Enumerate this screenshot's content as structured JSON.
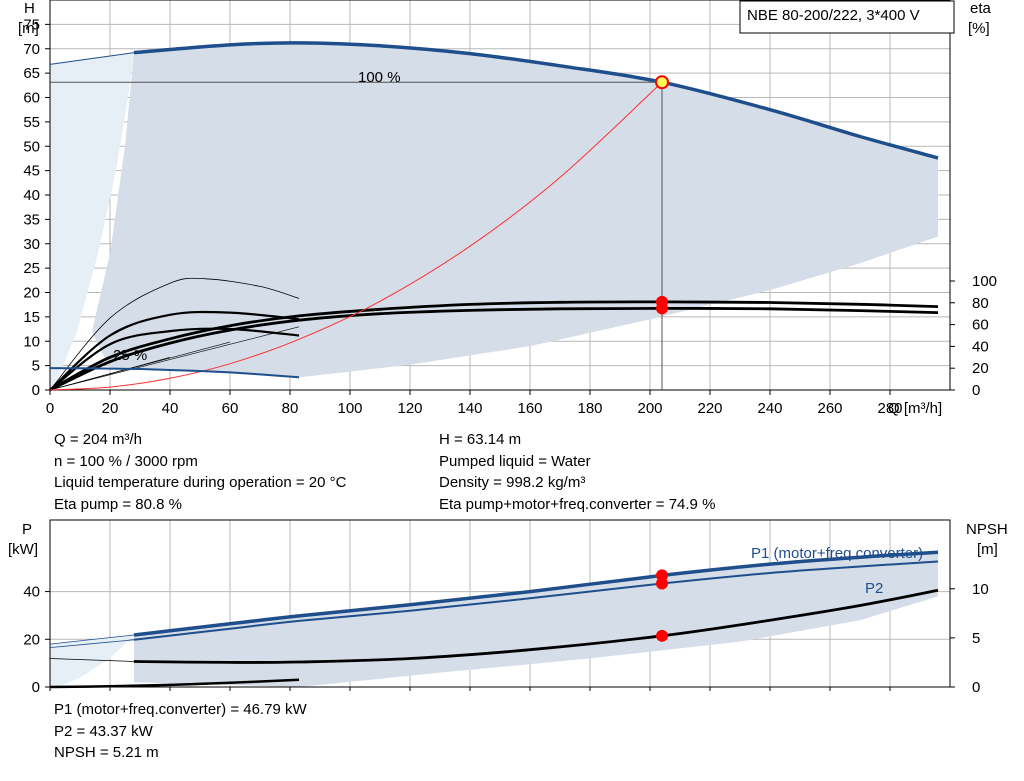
{
  "product_box": "NBE 80-200/222, 3*400 V",
  "top_panel": {
    "y_label_line1": "H",
    "y_label_line2": "[m]",
    "y2_label_line1": "eta",
    "y2_label_line2": "[%]",
    "x_label": "Q [m³/h]",
    "curve_label_100": "100 %",
    "curve_label_25": "25 %"
  },
  "bottom_panel": {
    "y_label_line1": "P",
    "y_label_line2": "[kW]",
    "y2_label_line1": "NPSH",
    "y2_label_line2": "[m]",
    "p1_label": "P1 (motor+freq.converter)",
    "p2_label": "P2"
  },
  "info_top": {
    "q": "Q = 204 m³/h",
    "n": "n = 100 % / 3000 rpm",
    "temp": "Liquid temperature during operation = 20 °C",
    "eta_pump": "Eta pump = 80.8 %",
    "h": "H = 63.14 m",
    "liquid": "Pumped liquid = Water",
    "density": "Density = 998.2 kg/m³",
    "eta_total": "Eta pump+motor+freq.converter = 74.9 %"
  },
  "info_bottom": {
    "p1": "P1 (motor+freq.converter) = 46.79 kW",
    "p2": "P2 = 43.37 kW",
    "npsh": "NPSH = 5.21 m"
  },
  "colors": {
    "curve_blue": "#1f4e8c",
    "curve_black": "#000000",
    "area_fill": "#d4dde8",
    "area_light": "#e6eef6",
    "system_curve": "#ff3030",
    "grid": "#b8b8b8",
    "operating_point": "#ff0000"
  },
  "chart_data": [
    {
      "type": "line",
      "panel": "QH",
      "xlim": [
        0,
        300
      ],
      "ylim": [
        0,
        80
      ],
      "y2lim": [
        0,
        100
      ],
      "x_ticks": [
        0,
        20,
        40,
        60,
        80,
        100,
        120,
        140,
        160,
        180,
        200,
        220,
        240,
        260,
        280
      ],
      "y_ticks": [
        0,
        5,
        10,
        15,
        20,
        25,
        30,
        35,
        40,
        45,
        50,
        55,
        60,
        65,
        70,
        75
      ],
      "y2_ticks": [
        0,
        20,
        40,
        60,
        80,
        100
      ],
      "grid": true,
      "operating_point": {
        "Q": 204,
        "H": 63.14
      },
      "series": [
        {
          "role": "H_100",
          "x": [
            28,
            60,
            83,
            110,
            140,
            170,
            204,
            240,
            270,
            296
          ],
          "y": [
            69.2,
            70.8,
            71.2,
            70.6,
            69.0,
            66.5,
            63.14,
            57.5,
            52.0,
            47.6
          ]
        },
        {
          "role": "H_100_extension",
          "x": [
            0,
            28
          ],
          "y": [
            66.8,
            69.2
          ]
        },
        {
          "role": "H_25",
          "x": [
            0,
            10,
            20,
            30,
            40,
            50,
            60,
            70,
            83
          ],
          "y": [
            4.5,
            4.45,
            4.4,
            4.3,
            4.1,
            3.9,
            3.6,
            3.2,
            2.6
          ]
        },
        {
          "role": "area_lower",
          "x": [
            83,
            120,
            160,
            200,
            240,
            270,
            296
          ],
          "y": [
            2.6,
            5.2,
            9.0,
            14.5,
            20.5,
            26.0,
            31.5
          ]
        },
        {
          "role": "system_curve",
          "x": [
            0,
            20,
            40,
            60,
            83,
            110,
            140,
            170,
            204
          ],
          "y": [
            0,
            0.6,
            2.4,
            5.4,
            10.4,
            18.2,
            29.5,
            43.6,
            63.14
          ]
        },
        {
          "role": "eta_pump",
          "x": [
            0,
            20,
            40,
            60,
            83,
            110,
            140,
            170,
            204,
            240,
            270,
            296
          ],
          "y2": [
            0,
            30,
            47,
            59,
            68,
            74,
            78.5,
            80.5,
            80.8,
            80.3,
            78.6,
            76.5
          ]
        },
        {
          "role": "eta_total",
          "x": [
            0,
            20,
            40,
            60,
            83,
            110,
            140,
            170,
            204,
            240,
            270,
            296
          ],
          "y2": [
            0,
            26,
            43,
            55,
            64,
            70,
            73,
            74.5,
            74.9,
            74.5,
            72.8,
            71.0
          ]
        },
        {
          "role": "eta_25_a",
          "x": [
            0,
            20,
            40,
            60,
            83
          ],
          "y2": [
            0,
            42,
            54,
            56,
            50
          ]
        },
        {
          "role": "eta_25_b",
          "x": [
            0,
            20,
            40,
            60,
            83
          ],
          "y2": [
            0,
            50,
            69,
            71,
            65
          ]
        },
        {
          "role": "eta_thin",
          "x": [
            0,
            20,
            40,
            52,
            70,
            83
          ],
          "y2": [
            0,
            66,
            98,
            102,
            95,
            84
          ]
        }
      ],
      "markers_y2": [
        80.8,
        74.9
      ]
    },
    {
      "type": "line",
      "panel": "P_NPSH",
      "xlim": [
        0,
        300
      ],
      "ylim": [
        0,
        70
      ],
      "y_ticks": [
        0,
        20,
        40
      ],
      "y2lim": [
        0,
        17
      ],
      "y2_ticks": [
        0,
        5,
        10
      ],
      "grid": true,
      "operating_point": {
        "Q": 204,
        "P1": 46.79,
        "P2": 43.37,
        "NPSH": 5.21
      },
      "series": [
        {
          "role": "P1",
          "x": [
            28,
            60,
            83,
            120,
            160,
            204,
            240,
            270,
            296
          ],
          "y": [
            21.8,
            26.5,
            29.8,
            34.5,
            40.0,
            46.79,
            51.5,
            54.4,
            56.5
          ]
        },
        {
          "role": "P1_ext",
          "x": [
            0,
            28
          ],
          "y": [
            18.0,
            21.8
          ]
        },
        {
          "role": "P2",
          "x": [
            28,
            60,
            83,
            120,
            160,
            204,
            240,
            270,
            296
          ],
          "y": [
            19.8,
            24.4,
            27.7,
            32.0,
            37.2,
            43.37,
            47.8,
            50.5,
            52.6
          ]
        },
        {
          "role": "P2_ext",
          "x": [
            0,
            28
          ],
          "y": [
            16.5,
            19.8
          ]
        },
        {
          "role": "P_25",
          "x": [
            0,
            20,
            40,
            60,
            83
          ],
          "y": [
            0.0,
            0.3,
            0.9,
            1.8,
            3.0
          ]
        },
        {
          "role": "NPSH",
          "x": [
            28,
            60,
            83,
            120,
            160,
            204,
            240,
            270,
            296
          ],
          "y2": [
            2.6,
            2.5,
            2.55,
            2.9,
            3.8,
            5.21,
            6.8,
            8.3,
            9.85
          ]
        },
        {
          "role": "NPSH_ext",
          "x": [
            0,
            28
          ],
          "y2": [
            2.9,
            2.6
          ]
        },
        {
          "role": "area_lower",
          "x": [
            83,
            130,
            180,
            230,
            270,
            296
          ],
          "y": [
            0.0,
            6.0,
            12.0,
            19.0,
            28.0,
            38.0
          ]
        }
      ]
    }
  ]
}
